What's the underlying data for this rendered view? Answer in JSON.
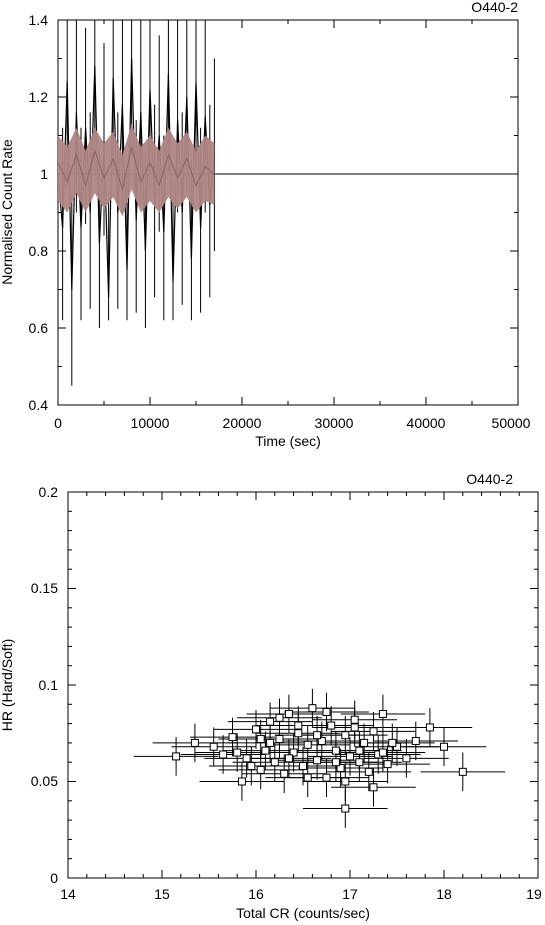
{
  "chart_data": [
    {
      "type": "line",
      "title": "O440-2",
      "xlabel": "Time (sec)",
      "ylabel": "Normalised Count Rate",
      "xlim": [
        0,
        50000
      ],
      "ylim": [
        0.4,
        1.4
      ],
      "xticks": [
        0,
        10000,
        20000,
        30000,
        40000,
        50000
      ],
      "yticks": [
        0.4,
        0.6,
        0.8,
        1,
        1.2,
        1.4
      ],
      "xtick_labels": [
        "0",
        "10000",
        "20000",
        "30000",
        "40000",
        "50000"
      ],
      "ytick_labels": [
        "0.4",
        "0.6",
        "0.8",
        "1",
        "1.2",
        "1.4"
      ],
      "reference_line": 1.0,
      "colors": {
        "raw": "#000000",
        "smoothed": "#b08585"
      },
      "series": [
        {
          "x": [
            0,
            500,
            1000,
            1500,
            2000,
            2500,
            3000,
            3500,
            4000,
            4500,
            5000,
            5500,
            6000,
            6500,
            7000,
            7500,
            8000,
            8500,
            9000,
            9500,
            10000,
            10500,
            11000,
            11500,
            12000,
            12500,
            13000,
            13500,
            14000,
            14500,
            15000,
            15500,
            16000,
            16500,
            17000
          ],
          "y": [
            1.0,
            0.86,
            1.24,
            0.7,
            1.16,
            0.86,
            1.12,
            0.9,
            1.28,
            0.82,
            1.08,
            0.68,
            1.25,
            0.9,
            1.18,
            0.75,
            1.3,
            0.88,
            1.16,
            0.8,
            1.22,
            0.92,
            1.1,
            0.85,
            1.26,
            0.72,
            1.14,
            0.9,
            1.2,
            0.78,
            1.24,
            0.86,
            1.15,
            0.92,
            1.05
          ],
          "err_low": [
            0.7,
            0.62,
            0.97,
            0.45,
            0.9,
            0.62,
            0.87,
            0.65,
            1.0,
            0.6,
            0.84,
            0.62,
            1.0,
            0.65,
            0.9,
            0.62,
            1.05,
            0.64,
            0.92,
            0.6,
            0.96,
            0.68,
            0.85,
            0.62,
            1.0,
            0.62,
            0.9,
            0.66,
            0.95,
            0.62,
            1.0,
            0.64,
            0.9,
            0.68,
            0.8
          ],
          "err_high": [
            1.3,
            1.12,
            1.4,
            0.95,
            1.4,
            1.12,
            1.38,
            1.16,
            1.4,
            1.06,
            1.34,
            0.95,
            1.4,
            1.16,
            1.4,
            1.0,
            1.4,
            1.14,
            1.4,
            1.06,
            1.4,
            1.18,
            1.36,
            1.1,
            1.4,
            0.98,
            1.4,
            1.16,
            1.4,
            1.04,
            1.4,
            1.12,
            1.4,
            1.18,
            1.3
          ]
        },
        {
          "x": [
            0,
            1000,
            2000,
            3000,
            4000,
            5000,
            6000,
            7000,
            8000,
            9000,
            10000,
            11000,
            12000,
            13000,
            14000,
            15000,
            16000,
            17000
          ],
          "y": [
            1.03,
            0.98,
            1.05,
            0.97,
            1.06,
            0.99,
            1.04,
            0.96,
            1.07,
            0.98,
            1.03,
            0.97,
            1.05,
            0.99,
            1.04,
            0.97,
            1.02,
            1.0
          ],
          "y_low": [
            0.93,
            0.9,
            0.95,
            0.9,
            0.95,
            0.91,
            0.94,
            0.89,
            0.96,
            0.9,
            0.93,
            0.9,
            0.94,
            0.91,
            0.94,
            0.9,
            0.93,
            0.92
          ],
          "y_high": [
            1.1,
            1.07,
            1.12,
            1.06,
            1.12,
            1.08,
            1.11,
            1.05,
            1.13,
            1.07,
            1.1,
            1.06,
            1.12,
            1.08,
            1.11,
            1.06,
            1.1,
            1.08
          ]
        }
      ]
    },
    {
      "type": "scatter",
      "title": "O440-2",
      "xlabel": "Total CR (counts/sec)",
      "ylabel": "HR (Hard/Soft)",
      "xlim": [
        14,
        19
      ],
      "ylim": [
        0,
        0.2
      ],
      "xticks": [
        14,
        15,
        16,
        17,
        18,
        19
      ],
      "yticks": [
        0,
        0.05,
        0.1,
        0.15,
        0.2
      ],
      "xtick_labels": [
        "14",
        "15",
        "16",
        "17",
        "18",
        "19"
      ],
      "ytick_labels": [
        "0",
        "0.05",
        "0.1",
        "0.15",
        "0.2"
      ],
      "series": [
        {
          "x": [
            15.15,
            15.35,
            15.55,
            15.65,
            15.75,
            15.85,
            15.9,
            16.0,
            16.05,
            16.1,
            16.15,
            16.2,
            16.25,
            16.3,
            16.35,
            16.4,
            16.45,
            16.5,
            16.55,
            16.6,
            16.65,
            16.7,
            16.75,
            16.8,
            16.85,
            16.9,
            16.95,
            17.0,
            17.05,
            17.1,
            17.15,
            17.2,
            17.25,
            17.3,
            17.35,
            17.4,
            17.5,
            17.6,
            17.7,
            17.85,
            18.0,
            18.2,
            16.95,
            16.05,
            16.45,
            16.75,
            17.1,
            15.95,
            16.35,
            16.65,
            17.25,
            17.45,
            16.55,
            16.25,
            16.85,
            17.05,
            15.8,
            16.15,
            16.95,
            17.35
          ],
          "y": [
            0.063,
            0.07,
            0.068,
            0.064,
            0.073,
            0.05,
            0.062,
            0.077,
            0.056,
            0.066,
            0.081,
            0.06,
            0.072,
            0.054,
            0.085,
            0.065,
            0.075,
            0.058,
            0.069,
            0.088,
            0.061,
            0.071,
            0.052,
            0.079,
            0.066,
            0.057,
            0.074,
            0.063,
            0.082,
            0.06,
            0.07,
            0.055,
            0.076,
            0.064,
            0.085,
            0.059,
            0.068,
            0.062,
            0.071,
            0.078,
            0.068,
            0.055,
            0.036,
            0.072,
            0.079,
            0.086,
            0.066,
            0.058,
            0.062,
            0.074,
            0.047,
            0.07,
            0.052,
            0.083,
            0.06,
            0.078,
            0.065,
            0.07,
            0.05,
            0.065
          ],
          "xerr": 0.45,
          "yerr": 0.01
        }
      ]
    }
  ]
}
